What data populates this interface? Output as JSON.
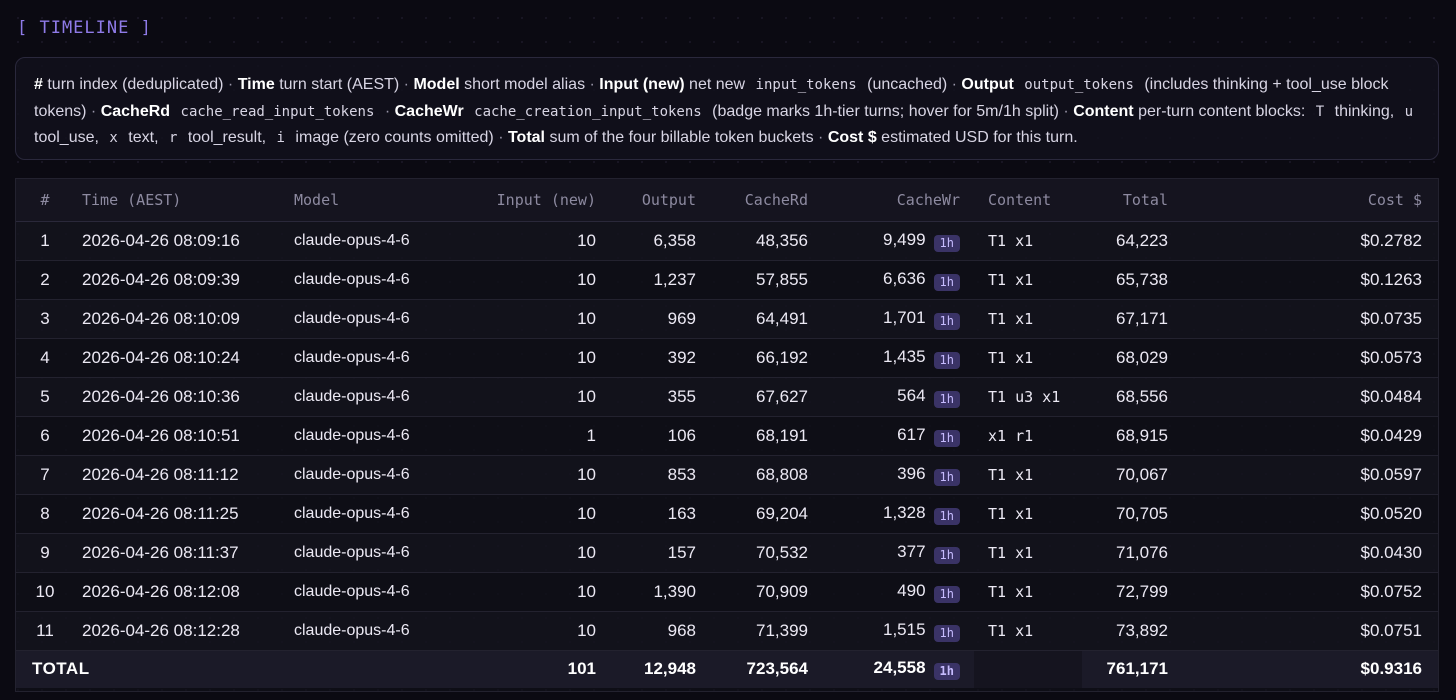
{
  "section_title": "[ TIMELINE ]",
  "legend": [
    {
      "type": "b",
      "text": "#"
    },
    {
      "type": "t",
      "text": " turn index (deduplicated) "
    },
    {
      "type": "s",
      "text": "·"
    },
    {
      "type": "t",
      "text": " "
    },
    {
      "type": "b",
      "text": "Time"
    },
    {
      "type": "t",
      "text": " turn start (AEST) "
    },
    {
      "type": "s",
      "text": "·"
    },
    {
      "type": "t",
      "text": " "
    },
    {
      "type": "b",
      "text": "Model"
    },
    {
      "type": "t",
      "text": " short model alias "
    },
    {
      "type": "s",
      "text": "·"
    },
    {
      "type": "t",
      "text": " "
    },
    {
      "type": "b",
      "text": "Input (new)"
    },
    {
      "type": "t",
      "text": " net new "
    },
    {
      "type": "c",
      "text": "input_tokens"
    },
    {
      "type": "t",
      "text": " (uncached) "
    },
    {
      "type": "s",
      "text": "·"
    },
    {
      "type": "t",
      "text": " "
    },
    {
      "type": "b",
      "text": "Output"
    },
    {
      "type": "t",
      "text": " "
    },
    {
      "type": "c",
      "text": "output_tokens"
    },
    {
      "type": "t",
      "text": " (includes thinking + tool_use block tokens) "
    },
    {
      "type": "s",
      "text": "·"
    },
    {
      "type": "t",
      "text": " "
    },
    {
      "type": "b",
      "text": "CacheRd"
    },
    {
      "type": "t",
      "text": " "
    },
    {
      "type": "c",
      "text": "cache_read_input_tokens"
    },
    {
      "type": "t",
      "text": " "
    },
    {
      "type": "s",
      "text": "·"
    },
    {
      "type": "t",
      "text": " "
    },
    {
      "type": "b",
      "text": "CacheWr"
    },
    {
      "type": "t",
      "text": " "
    },
    {
      "type": "c",
      "text": "cache_creation_input_tokens"
    },
    {
      "type": "t",
      "text": " (badge marks 1h-tier turns; hover for 5m/1h split) "
    },
    {
      "type": "s",
      "text": "·"
    },
    {
      "type": "t",
      "text": " "
    },
    {
      "type": "b",
      "text": "Content"
    },
    {
      "type": "t",
      "text": " per-turn content blocks: "
    },
    {
      "type": "c",
      "text": "T"
    },
    {
      "type": "t",
      "text": " thinking, "
    },
    {
      "type": "c",
      "text": "u"
    },
    {
      "type": "t",
      "text": " tool_use, "
    },
    {
      "type": "c",
      "text": "x"
    },
    {
      "type": "t",
      "text": " text, "
    },
    {
      "type": "c",
      "text": "r"
    },
    {
      "type": "t",
      "text": " tool_result, "
    },
    {
      "type": "c",
      "text": "i"
    },
    {
      "type": "t",
      "text": " image (zero counts omitted) "
    },
    {
      "type": "s",
      "text": "·"
    },
    {
      "type": "t",
      "text": " "
    },
    {
      "type": "b",
      "text": "Total"
    },
    {
      "type": "t",
      "text": " sum of the four billable token buckets "
    },
    {
      "type": "s",
      "text": "·"
    },
    {
      "type": "t",
      "text": " "
    },
    {
      "type": "b",
      "text": "Cost $"
    },
    {
      "type": "t",
      "text": " estimated USD for this turn."
    }
  ],
  "table": {
    "columns": [
      "#",
      "Time (AEST)",
      "Model",
      "Input (new)",
      "Output",
      "CacheRd",
      "CacheWr",
      "Content",
      "Total",
      "Cost $"
    ],
    "badge_label": "1h",
    "rows": [
      {
        "idx": "1",
        "time": "2026-04-26 08:09:16",
        "model": "claude-opus-4-6",
        "input": "10",
        "output": "6,358",
        "cache_rd": "48,356",
        "cache_wr": "9,499",
        "content": "T1 x1",
        "total": "64,223",
        "cost": "$0.2782"
      },
      {
        "idx": "2",
        "time": "2026-04-26 08:09:39",
        "model": "claude-opus-4-6",
        "input": "10",
        "output": "1,237",
        "cache_rd": "57,855",
        "cache_wr": "6,636",
        "content": "T1 x1",
        "total": "65,738",
        "cost": "$0.1263"
      },
      {
        "idx": "3",
        "time": "2026-04-26 08:10:09",
        "model": "claude-opus-4-6",
        "input": "10",
        "output": "969",
        "cache_rd": "64,491",
        "cache_wr": "1,701",
        "content": "T1 x1",
        "total": "67,171",
        "cost": "$0.0735"
      },
      {
        "idx": "4",
        "time": "2026-04-26 08:10:24",
        "model": "claude-opus-4-6",
        "input": "10",
        "output": "392",
        "cache_rd": "66,192",
        "cache_wr": "1,435",
        "content": "T1 x1",
        "total": "68,029",
        "cost": "$0.0573"
      },
      {
        "idx": "5",
        "time": "2026-04-26 08:10:36",
        "model": "claude-opus-4-6",
        "input": "10",
        "output": "355",
        "cache_rd": "67,627",
        "cache_wr": "564",
        "content": "T1 u3 x1",
        "total": "68,556",
        "cost": "$0.0484"
      },
      {
        "idx": "6",
        "time": "2026-04-26 08:10:51",
        "model": "claude-opus-4-6",
        "input": "1",
        "output": "106",
        "cache_rd": "68,191",
        "cache_wr": "617",
        "content": "x1 r1",
        "total": "68,915",
        "cost": "$0.0429"
      },
      {
        "idx": "7",
        "time": "2026-04-26 08:11:12",
        "model": "claude-opus-4-6",
        "input": "10",
        "output": "853",
        "cache_rd": "68,808",
        "cache_wr": "396",
        "content": "T1 x1",
        "total": "70,067",
        "cost": "$0.0597"
      },
      {
        "idx": "8",
        "time": "2026-04-26 08:11:25",
        "model": "claude-opus-4-6",
        "input": "10",
        "output": "163",
        "cache_rd": "69,204",
        "cache_wr": "1,328",
        "content": "T1 x1",
        "total": "70,705",
        "cost": "$0.0520"
      },
      {
        "idx": "9",
        "time": "2026-04-26 08:11:37",
        "model": "claude-opus-4-6",
        "input": "10",
        "output": "157",
        "cache_rd": "70,532",
        "cache_wr": "377",
        "content": "T1 x1",
        "total": "71,076",
        "cost": "$0.0430"
      },
      {
        "idx": "10",
        "time": "2026-04-26 08:12:08",
        "model": "claude-opus-4-6",
        "input": "10",
        "output": "1,390",
        "cache_rd": "70,909",
        "cache_wr": "490",
        "content": "T1 x1",
        "total": "72,799",
        "cost": "$0.0752"
      },
      {
        "idx": "11",
        "time": "2026-04-26 08:12:28",
        "model": "claude-opus-4-6",
        "input": "10",
        "output": "968",
        "cache_rd": "71,399",
        "cache_wr": "1,515",
        "content": "T1 x1",
        "total": "73,892",
        "cost": "$0.0751"
      }
    ],
    "totals": {
      "label": "TOTAL",
      "input": "101",
      "output": "12,948",
      "cache_rd": "723,564",
      "cache_wr": "24,558",
      "total": "761,171",
      "cost": "$0.9316"
    }
  },
  "colors": {
    "accent": "#8f7be8",
    "badge_bg": "#3a3366",
    "badge_fg": "#c7bcff",
    "background": "#0b0a12"
  }
}
